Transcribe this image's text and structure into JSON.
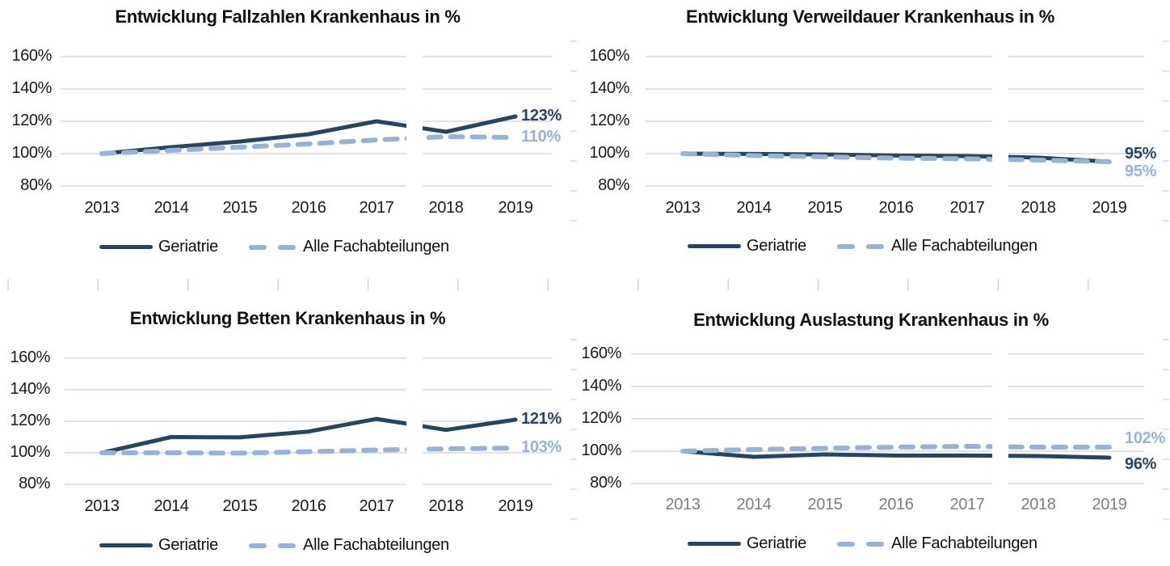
{
  "colors": {
    "geriatrie": "#264563",
    "alle_fachabteilungen": "#95B3D7",
    "grid": "#D9D9D9",
    "axis_text": "#1A1A1A",
    "muted_axis_text": "#7F7F7F"
  },
  "axis": {
    "y_tick_labels": [
      "160%",
      "140%",
      "120%",
      "100%",
      "80%"
    ],
    "year_labels": [
      "2013",
      "2014",
      "2015",
      "2016",
      "2017",
      "2018",
      "2019"
    ]
  },
  "chart_data": [
    {
      "type": "line",
      "title": "Entwicklung Fallzahlen Krankenhaus in %",
      "categories": [
        2013,
        2014,
        2015,
        2016,
        2017,
        2018,
        2019
      ],
      "ylim": [
        80,
        160
      ],
      "y_ticks": [
        80,
        100,
        120,
        140,
        160
      ],
      "axis_break_between": [
        "2017",
        "2018"
      ],
      "legend_position": "bottom",
      "series": [
        {
          "name": "Geriatrie",
          "style": "solid",
          "values": [
            100,
            104,
            107.5,
            112,
            120,
            113.5,
            123
          ],
          "end_label": "123%"
        },
        {
          "name": "Alle Fachabteilungen",
          "style": "dashed",
          "values": [
            100,
            102,
            104,
            106,
            108.5,
            110.5,
            110
          ],
          "end_label": "110%"
        }
      ]
    },
    {
      "type": "line",
      "title": "Entwicklung Verweildauer Krankenhaus in %",
      "categories": [
        2013,
        2014,
        2015,
        2016,
        2017,
        2018,
        2019
      ],
      "ylim": [
        80,
        160
      ],
      "y_ticks": [
        80,
        100,
        120,
        140,
        160
      ],
      "axis_break_between": [
        "2017",
        "2018"
      ],
      "legend_position": "bottom",
      "series": [
        {
          "name": "Geriatrie",
          "style": "solid",
          "values": [
            100,
            99.8,
            99.5,
            98.8,
            98.5,
            97.5,
            95
          ],
          "end_label": "95%"
        },
        {
          "name": "Alle Fachabteilungen",
          "style": "dashed",
          "values": [
            100,
            98.8,
            98,
            97.2,
            96.8,
            96,
            95
          ],
          "end_label": "95%"
        }
      ]
    },
    {
      "type": "line",
      "title": "Entwicklung Betten Krankenhaus in %",
      "categories": [
        2013,
        2014,
        2015,
        2016,
        2017,
        2018,
        2019
      ],
      "ylim": [
        80,
        160
      ],
      "y_ticks": [
        80,
        100,
        120,
        140,
        160
      ],
      "axis_break_between": [
        "2017",
        "2018"
      ],
      "legend_position": "bottom",
      "series": [
        {
          "name": "Geriatrie",
          "style": "solid",
          "values": [
            100,
            110,
            109.8,
            113.5,
            121.5,
            114.5,
            121
          ],
          "end_label": "121%"
        },
        {
          "name": "Alle Fachabteilungen",
          "style": "dashed",
          "values": [
            100,
            100,
            99.8,
            100.7,
            101.8,
            102.5,
            103
          ],
          "end_label": "103%"
        }
      ]
    },
    {
      "type": "line",
      "title": "Entwicklung Auslastung Krankenhaus in %",
      "categories": [
        2013,
        2014,
        2015,
        2016,
        2017,
        2018,
        2019
      ],
      "ylim": [
        80,
        160
      ],
      "y_ticks": [
        80,
        100,
        120,
        140,
        160
      ],
      "axis_break_between": [
        "2017",
        "2018"
      ],
      "legend_position": "bottom",
      "x_label_muted": true,
      "series": [
        {
          "name": "Geriatrie",
          "style": "solid",
          "values": [
            100,
            96.5,
            98,
            97.3,
            97.3,
            97,
            96
          ],
          "end_label": "96%"
        },
        {
          "name": "Alle Fachabteilungen",
          "style": "dashed",
          "values": [
            100,
            101,
            101.8,
            102.5,
            103,
            102.5,
            102.5
          ],
          "end_label": "102%"
        }
      ]
    }
  ]
}
